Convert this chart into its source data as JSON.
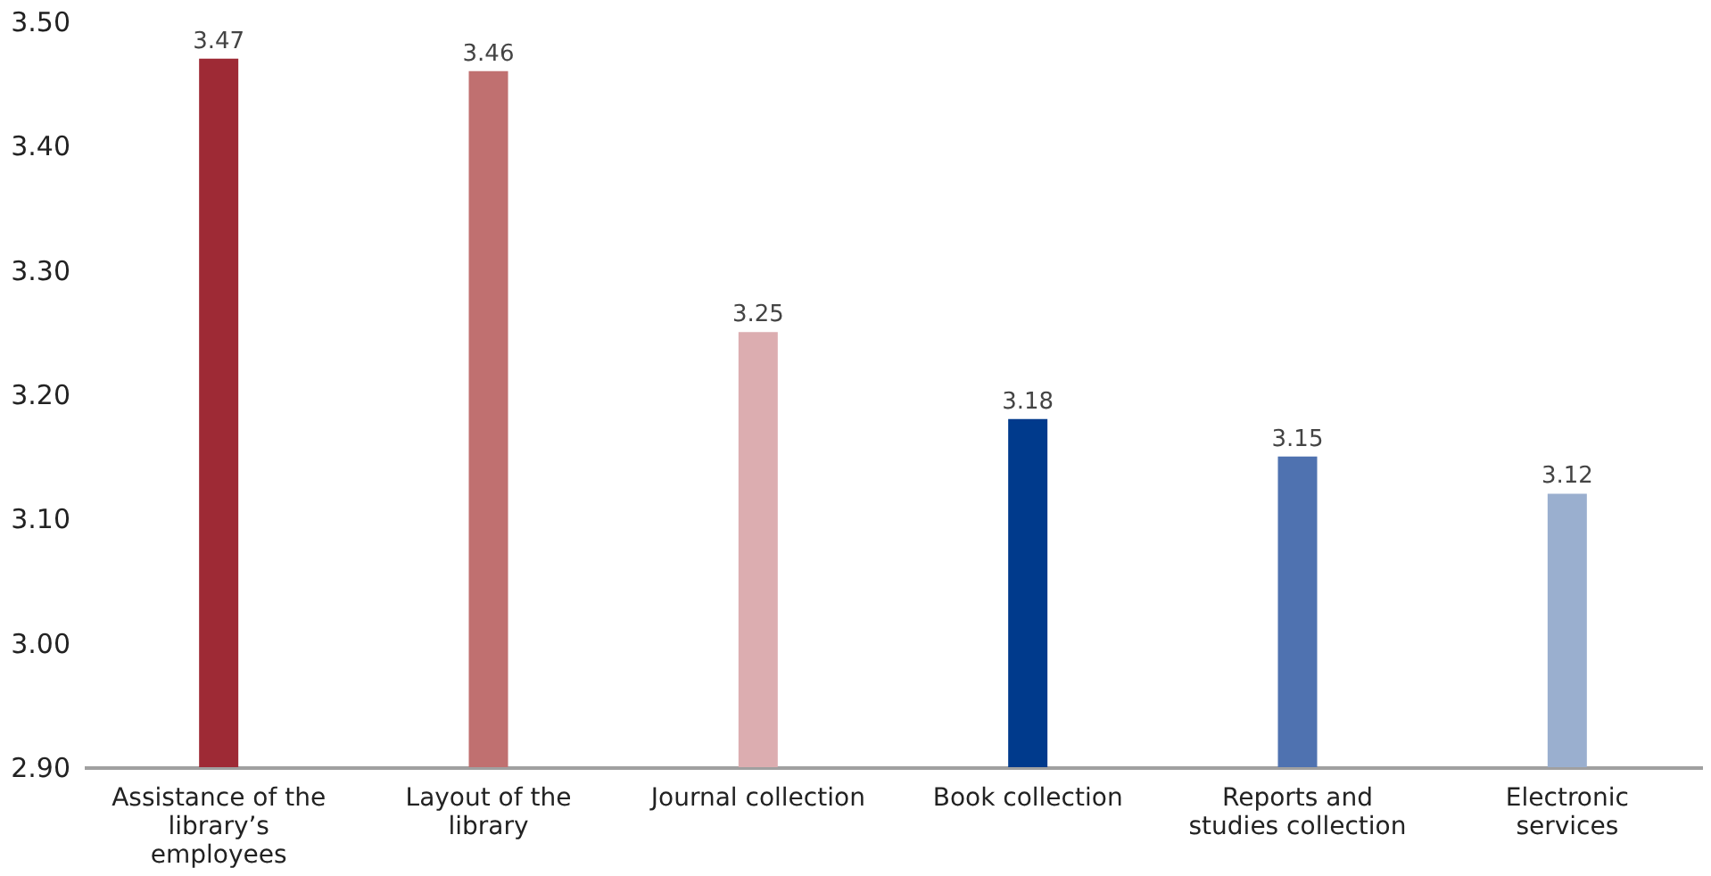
{
  "chart_data": {
    "type": "bar",
    "categories": [
      "Assistance of the library’s employees",
      "Layout of the library",
      "Journal collection",
      "Book collection",
      "Reports and studies collection",
      "Electronic services"
    ],
    "values": [
      3.47,
      3.46,
      3.25,
      3.18,
      3.15,
      3.12
    ],
    "colors": [
      "#9e2a35",
      "#c07070",
      "#dcadb0",
      "#003a8c",
      "#4f72b0",
      "#9aafcf"
    ],
    "ylim": [
      2.9,
      3.5
    ],
    "yticks": [
      {
        "value": 2.9,
        "label": "2.90"
      },
      {
        "value": 3.0,
        "label": "3.00"
      },
      {
        "value": 3.1,
        "label": "3.10"
      },
      {
        "value": 3.2,
        "label": "3.20"
      },
      {
        "value": 3.3,
        "label": "3.30"
      },
      {
        "value": 3.4,
        "label": "3.40"
      },
      {
        "value": 3.5,
        "label": "3.50"
      }
    ],
    "data_labels": true,
    "grid": false
  }
}
